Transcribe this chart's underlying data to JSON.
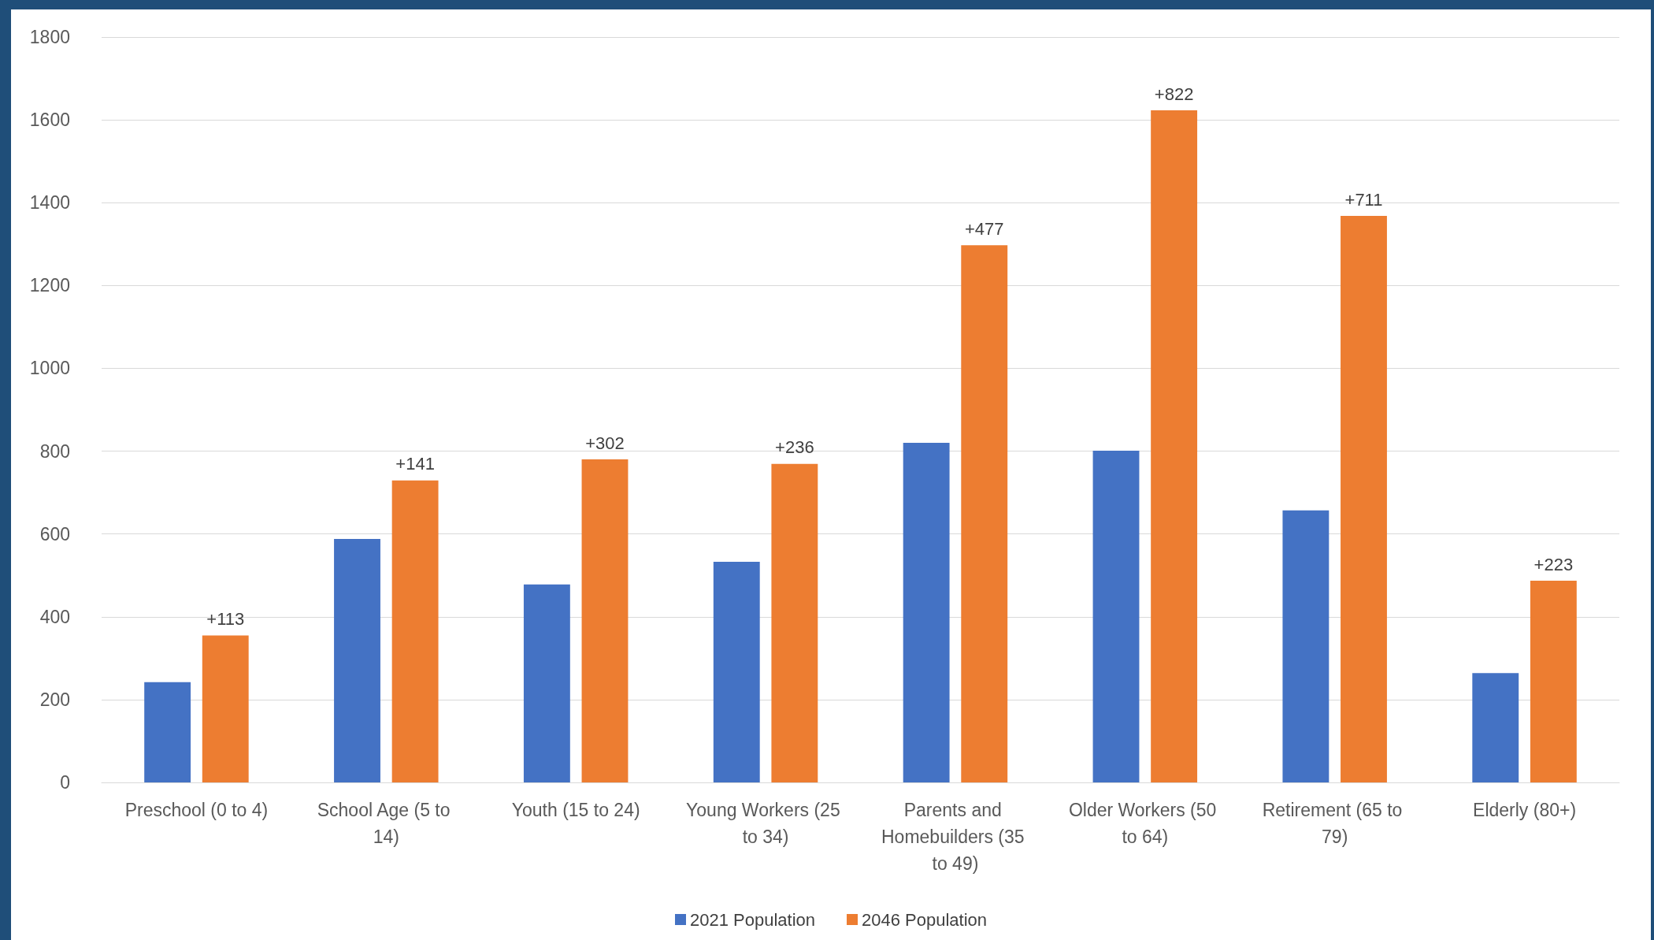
{
  "chart_data": {
    "type": "bar",
    "categories": [
      "Preschool (0 to 4)",
      "School Age (5 to 14)",
      "Youth (15 to 24)",
      "Young Workers (25 to 34)",
      "Parents and Homebuilders (35 to 49)",
      "Older Workers (50 to 64)",
      "Retirement (65 to 79)",
      "Elderly (80+)"
    ],
    "series": [
      {
        "name": "2021 Population",
        "color": "#4472c4",
        "values": [
          242,
          588,
          478,
          533,
          820,
          801,
          657,
          264
        ]
      },
      {
        "name": "2046 Population",
        "color": "#ed7d31",
        "values": [
          355,
          729,
          780,
          769,
          1297,
          1623,
          1368,
          487
        ]
      }
    ],
    "annotations": [
      "+113",
      "+141",
      "+302",
      "+236",
      "+477",
      "+822",
      "+711",
      "+223"
    ],
    "ylim": [
      0,
      1800
    ],
    "yticks": [
      0,
      200,
      400,
      600,
      800,
      1000,
      1200,
      1400,
      1600,
      1800
    ],
    "grid": "y",
    "legend": "bottom"
  }
}
